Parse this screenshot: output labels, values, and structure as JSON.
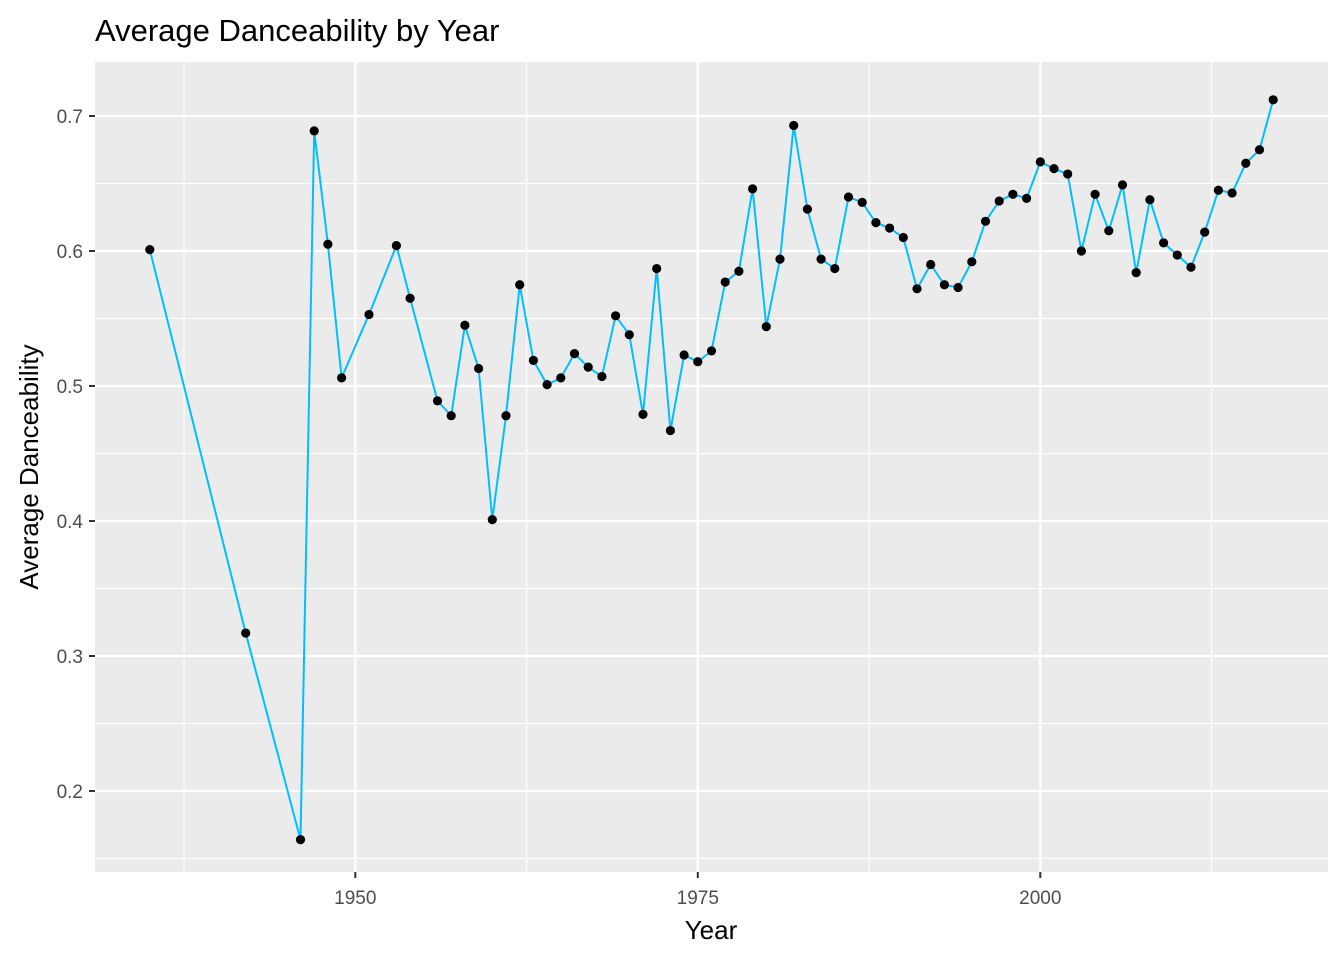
{
  "chart_data": {
    "type": "line",
    "title": "Average Danceability by Year",
    "xlabel": "Year",
    "ylabel": "Average Danceability",
    "xlim": [
      1931,
      2021
    ],
    "ylim": [
      0.14,
      0.74
    ],
    "x_ticks": [
      1950,
      1975,
      2000
    ],
    "x_tick_labels": [
      "1950",
      "1975",
      "2000"
    ],
    "y_ticks": [
      0.2,
      0.3,
      0.4,
      0.5,
      0.6,
      0.7
    ],
    "y_tick_labels": [
      "0.2",
      "0.3",
      "0.4",
      "0.5",
      "0.6",
      "0.7"
    ],
    "grid": true,
    "legend": "none",
    "colors": {
      "panel": "#ebebeb",
      "grid": "#ffffff",
      "line": "#00bfff",
      "point": "#000000",
      "tick": "#4d4d4d"
    },
    "series": [
      {
        "x": [
          1935,
          1942,
          1946,
          1947,
          1948,
          1949,
          1951,
          1953,
          1954,
          1956,
          1957,
          1958,
          1959,
          1960,
          1961,
          1962,
          1963,
          1964,
          1965,
          1966,
          1967,
          1968,
          1969,
          1970,
          1971,
          1972,
          1973,
          1974,
          1975,
          1976,
          1977,
          1978,
          1979,
          1980,
          1981,
          1982,
          1983,
          1984,
          1985,
          1986,
          1987,
          1988,
          1989,
          1990,
          1991,
          1992,
          1993,
          1994,
          1995,
          1996,
          1997,
          1998,
          1999,
          2000,
          2001,
          2002,
          2003,
          2004,
          2005,
          2006,
          2007,
          2008,
          2009,
          2010,
          2011,
          2012,
          2013,
          2014,
          2015,
          2016,
          2017
        ],
        "y": [
          0.601,
          0.317,
          0.164,
          0.689,
          0.605,
          0.506,
          0.553,
          0.604,
          0.565,
          0.489,
          0.478,
          0.545,
          0.513,
          0.401,
          0.478,
          0.575,
          0.519,
          0.501,
          0.506,
          0.524,
          0.514,
          0.507,
          0.552,
          0.538,
          0.479,
          0.587,
          0.467,
          0.523,
          0.518,
          0.526,
          0.577,
          0.585,
          0.646,
          0.544,
          0.594,
          0.693,
          0.631,
          0.594,
          0.587,
          0.64,
          0.636,
          0.621,
          0.617,
          0.61,
          0.572,
          0.59,
          0.575,
          0.573,
          0.592,
          0.622,
          0.637,
          0.642,
          0.639,
          0.666,
          0.661,
          0.657,
          0.6,
          0.642,
          0.615,
          0.649,
          0.584,
          0.638,
          0.606,
          0.597,
          0.588,
          0.614,
          0.645,
          0.643,
          0.665,
          0.675,
          0.712
        ]
      }
    ]
  }
}
